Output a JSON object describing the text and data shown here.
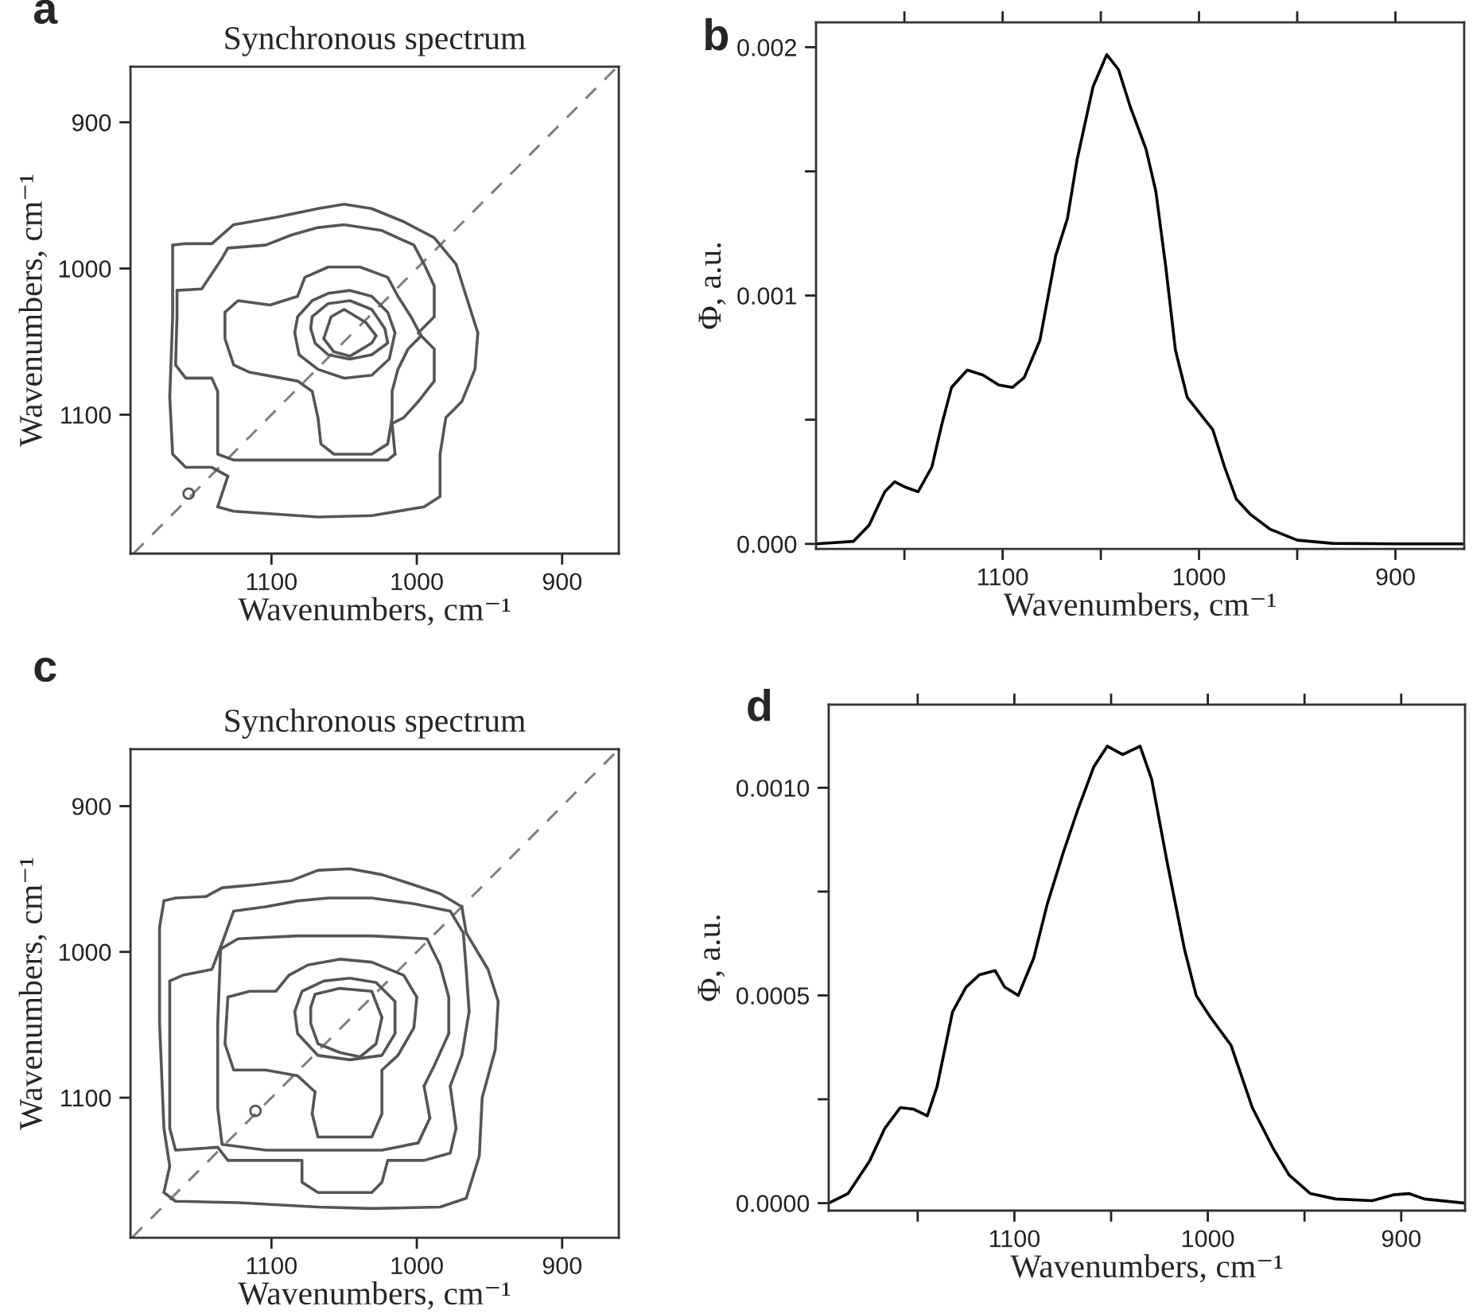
{
  "chart_data": [
    {
      "type": "line",
      "title": "Synchronous spectrum",
      "xlabel": "Wavenumbers, cm⁻¹",
      "ylabel": "Wavenumbers, cm⁻¹",
      "annotations": [
        "a"
      ],
      "xlim": [
        1197,
        861
      ],
      "ylim": [
        1195,
        862
      ],
      "xticks": [
        1100,
        1000,
        900
      ],
      "yticks": [
        900,
        1000,
        1100
      ],
      "grid": false,
      "legend": false,
      "marker": "none",
      "line_style": "solid",
      "series": [
        {
          "color": "#808080",
          "line_style": "dashed",
          "x": [
            1195,
            862
          ],
          "values": [
            1195,
            862
          ]
        },
        {
          "color": "#555555",
          "x": [
            1168,
            1159,
            1141,
            1126,
            1097,
            1068,
            1050,
            1031,
            1009,
            988,
            973,
            966,
            958,
            960,
            969,
            980,
            984,
            984,
            995,
            1031,
            1068,
            1126,
            1137,
            1130,
            1141,
            1159,
            1168,
            1170,
            1168,
            1168
          ],
          "values": [
            984,
            983,
            983,
            970,
            965,
            959,
            956,
            959,
            968,
            979,
            997,
            1019,
            1044,
            1069,
            1091,
            1102,
            1127,
            1156,
            1163,
            1169,
            1170,
            1166,
            1163,
            1142,
            1136,
            1136,
            1127,
            1088,
            1033,
            984
          ]
        },
        {
          "color": "#555555",
          "x": [
            1165,
            1148,
            1134,
            1130,
            1104,
            1086,
            1068,
            1050,
            1024,
            1002,
            995,
            988,
            988,
            999,
            988,
            988,
            999,
            1009,
            1017,
            1015,
            1020,
            1068,
            1126,
            1137,
            1137,
            1141,
            1159,
            1166,
            1165,
            1165
          ],
          "values": [
            1015,
            1014,
            993,
            986,
            984,
            977,
            972,
            970,
            974,
            984,
            997,
            1012,
            1033,
            1044,
            1055,
            1077,
            1091,
            1102,
            1106,
            1127,
            1131,
            1131,
            1131,
            1127,
            1084,
            1075,
            1075,
            1066,
            1033,
            1015
          ]
        },
        {
          "color": "#555555",
          "x": [
            1132,
            1123,
            1101,
            1082,
            1077,
            1061,
            1039,
            1020,
            1013,
            1004,
            997,
            1006,
            1013,
            1017,
            1017,
            1020,
            1031,
            1057,
            1066,
            1068,
            1072,
            1082,
            1115,
            1126,
            1132,
            1132
          ],
          "values": [
            1030,
            1022,
            1025,
            1019,
            1006,
            999,
            999,
            1006,
            1019,
            1033,
            1046,
            1055,
            1069,
            1084,
            1102,
            1120,
            1127,
            1127,
            1120,
            1102,
            1084,
            1077,
            1071,
            1066,
            1048,
            1030
          ]
        },
        {
          "color": "#555555",
          "x": [
            1082,
            1072,
            1061,
            1046,
            1031,
            1020,
            1015,
            1019,
            1031,
            1050,
            1068,
            1081,
            1084,
            1082
          ],
          "values": [
            1033,
            1022,
            1017,
            1015,
            1019,
            1030,
            1044,
            1062,
            1073,
            1075,
            1069,
            1059,
            1044,
            1033
          ]
        },
        {
          "color": "#555555",
          "x": [
            1072,
            1061,
            1046,
            1031,
            1022,
            1020,
            1031,
            1046,
            1061,
            1070,
            1073,
            1072
          ],
          "values": [
            1033,
            1024,
            1022,
            1028,
            1041,
            1051,
            1059,
            1062,
            1059,
            1051,
            1041,
            1033
          ]
        },
        {
          "color": "#555555",
          "x": [
            1064,
            1059,
            1050,
            1035,
            1028,
            1031,
            1046,
            1057,
            1064
          ],
          "values": [
            1048,
            1033,
            1028,
            1037,
            1046,
            1051,
            1060,
            1057,
            1048
          ]
        },
        {
          "type": "scatter",
          "marker": "circle",
          "color": "#555555",
          "x": [
            1157
          ],
          "values": [
            1154
          ]
        }
      ]
    },
    {
      "type": "line",
      "xlabel": "Wavenumbers, cm⁻¹",
      "ylabel": "Φ, a.u.",
      "annotations": [
        "b"
      ],
      "xlim": [
        1195,
        865
      ],
      "ylim": [
        -2e-05,
        0.0021
      ],
      "xticks": [
        {
          "value": 1150,
          "label": null
        },
        1100,
        {
          "value": 1050,
          "label": null
        },
        1000,
        {
          "value": 950,
          "label": null
        },
        900
      ],
      "yticks": [
        {
          "value": 0,
          "label": "0.000"
        },
        {
          "value": 0.0005,
          "label": null
        },
        {
          "value": 0.001,
          "label": "0.001"
        },
        {
          "value": 0.0015,
          "label": null
        },
        {
          "value": 0.002,
          "label": "0.002"
        }
      ],
      "grid": false,
      "legend": false,
      "marker": "none",
      "line_style": "solid",
      "series": [
        {
          "color": "#000000",
          "x": [
            1195,
            1176,
            1168,
            1160,
            1155,
            1150,
            1143,
            1136,
            1131,
            1126,
            1118,
            1110,
            1102,
            1095,
            1089,
            1081,
            1073,
            1067,
            1062,
            1054,
            1047,
            1041,
            1035,
            1027,
            1022,
            1017,
            1012,
            1006,
            998,
            993,
            987,
            981,
            974,
            964,
            950,
            932,
            900,
            866
          ],
          "values": [
            0,
            1e-05,
            7.5e-05,
            0.00021,
            0.00025,
            0.00023,
            0.00021,
            0.00031,
            0.00048,
            0.00063,
            0.0007,
            0.00068,
            0.00064,
            0.00063,
            0.00067,
            0.00082,
            0.00116,
            0.00131,
            0.00155,
            0.00184,
            0.00197,
            0.00191,
            0.00176,
            0.00159,
            0.00142,
            0.00112,
            0.00078,
            0.00059,
            0.00051,
            0.00046,
            0.00031,
            0.00018,
            0.00012,
            6e-05,
            1.5e-05,
            2e-06,
            0,
            0
          ]
        }
      ]
    },
    {
      "type": "line",
      "title": "Synchronous spectrum",
      "xlabel": "Wavenumbers, cm⁻¹",
      "ylabel": "Wavenumbers, cm⁻¹",
      "annotations": [
        "c"
      ],
      "xlim": [
        1197,
        861
      ],
      "ylim": [
        1196,
        861
      ],
      "xticks": [
        1100,
        1000,
        900
      ],
      "yticks": [
        900,
        1000,
        1100
      ],
      "grid": false,
      "legend": false,
      "marker": "none",
      "line_style": "solid",
      "series": [
        {
          "color": "#808080",
          "line_style": "dashed",
          "x": [
            1196,
            861
          ],
          "values": [
            1196,
            861
          ]
        },
        {
          "color": "#555555",
          "x": [
            1174,
            1166,
            1145,
            1134,
            1112,
            1086,
            1068,
            1046,
            1024,
            1002,
            984,
            969,
            966,
            951,
            944,
            946,
            955,
            957,
            966,
            984,
            1031,
            1068,
            1123,
            1166,
            1174,
            1170,
            1174,
            1177,
            1177,
            1174
          ],
          "values": [
            965,
            963,
            962,
            956,
            954,
            951,
            944,
            943,
            947,
            954,
            960,
            969,
            987,
            1012,
            1034,
            1067,
            1100,
            1140,
            1169,
            1175,
            1176,
            1175,
            1172,
            1171,
            1165,
            1147,
            1121,
            1049,
            983,
            965
          ]
        },
        {
          "color": "#555555",
          "x": [
            1170,
            1161,
            1141,
            1134,
            1126,
            1104,
            1082,
            1061,
            1031,
            1002,
            977,
            968,
            966,
            964,
            969,
            977,
            973,
            977,
            995,
            1020,
            1024,
            1031,
            1068,
            1079,
            1079,
            1130,
            1137,
            1166,
            1170,
            1170,
            1170
          ],
          "values": [
            1020,
            1016,
            1012,
            994,
            972,
            969,
            965,
            963,
            963,
            967,
            972,
            987,
            1012,
            1041,
            1071,
            1092,
            1121,
            1138,
            1143,
            1143,
            1158,
            1165,
            1165,
            1158,
            1143,
            1143,
            1134,
            1136,
            1121,
            1049,
            1020
          ]
        },
        {
          "color": "#555555",
          "x": [
            1135,
            1123,
            1082,
            1031,
            993,
            984,
            978,
            978,
            988,
            995,
            991,
            999,
            1024,
            1104,
            1134,
            1137,
            1137,
            1135
          ],
          "values": [
            998,
            991,
            989,
            989,
            991,
            1009,
            1031,
            1056,
            1078,
            1092,
            1114,
            1131,
            1136,
            1136,
            1132,
            1107,
            1049,
            998
          ]
        },
        {
          "color": "#555555",
          "x": [
            1130,
            1115,
            1097,
            1088,
            1075,
            1053,
            1031,
            1009,
            1000,
            1002,
            1013,
            1024,
            1024,
            1031,
            1068,
            1072,
            1070,
            1082,
            1104,
            1126,
            1132,
            1130
          ],
          "values": [
            1031,
            1027,
            1027,
            1016,
            1009,
            1005,
            1007,
            1016,
            1031,
            1052,
            1071,
            1081,
            1111,
            1127,
            1127,
            1111,
            1096,
            1085,
            1081,
            1081,
            1063,
            1031
          ]
        },
        {
          "color": "#555555",
          "x": [
            1084,
            1079,
            1064,
            1046,
            1028,
            1015,
            1015,
            1024,
            1046,
            1068,
            1082,
            1084
          ],
          "values": [
            1041,
            1027,
            1020,
            1018,
            1021,
            1034,
            1056,
            1071,
            1074,
            1071,
            1056,
            1041
          ]
        },
        {
          "color": "#555555",
          "x": [
            1073,
            1070,
            1053,
            1031,
            1024,
            1028,
            1039,
            1053,
            1068,
            1073,
            1073
          ],
          "values": [
            1038,
            1029,
            1025,
            1027,
            1045,
            1063,
            1072,
            1069,
            1063,
            1049,
            1038
          ]
        },
        {
          "type": "scatter",
          "marker": "circle",
          "color": "#555555",
          "x": [
            1111
          ],
          "values": [
            1109
          ]
        }
      ]
    },
    {
      "type": "line",
      "xlabel": "Wavenumbers, cm⁻¹",
      "ylabel": "Φ, a.u.",
      "annotations": [
        "d"
      ],
      "xlim": [
        1196,
        867
      ],
      "ylim": [
        -1.8e-05,
        0.0012
      ],
      "xticks": [
        {
          "value": 1150,
          "label": null
        },
        1100,
        {
          "value": 1050,
          "label": null
        },
        1000,
        {
          "value": 950,
          "label": null
        },
        900
      ],
      "yticks": [
        {
          "value": 0,
          "label": "0.0000"
        },
        {
          "value": 0.00025,
          "label": null
        },
        {
          "value": 0.0005,
          "label": "0.0005"
        },
        {
          "value": 0.00075,
          "label": null
        },
        {
          "value": 0.001,
          "label": "0.0010"
        }
      ],
      "grid": false,
      "legend": false,
      "marker": "none",
      "line_style": "solid",
      "series": [
        {
          "color": "#000000",
          "x": [
            1196,
            1186,
            1175,
            1167,
            1159,
            1152,
            1145,
            1140,
            1132,
            1125,
            1118,
            1110,
            1105,
            1098,
            1090,
            1083,
            1075,
            1067,
            1059,
            1052,
            1044,
            1035,
            1029,
            1021,
            1012,
            1006,
            999,
            988,
            977,
            966,
            958,
            947,
            934,
            915,
            904,
            896,
            888,
            867
          ],
          "values": [
            0,
            2.3e-05,
            0.0001,
            0.00018,
            0.00023,
            0.000226,
            0.00021,
            0.00028,
            0.00046,
            0.00052,
            0.00055,
            0.00056,
            0.00052,
            0.0005,
            0.00059,
            0.00072,
            0.00084,
            0.00095,
            0.00105,
            0.0011,
            0.00108,
            0.0011,
            0.00102,
            0.00082,
            0.00061,
            0.0005,
            0.00045,
            0.00038,
            0.00023,
            0.00013,
            6.8e-05,
            2.3e-05,
            1e-05,
            6e-06,
            2e-05,
            2.3e-05,
            1e-05,
            0
          ]
        }
      ]
    }
  ]
}
